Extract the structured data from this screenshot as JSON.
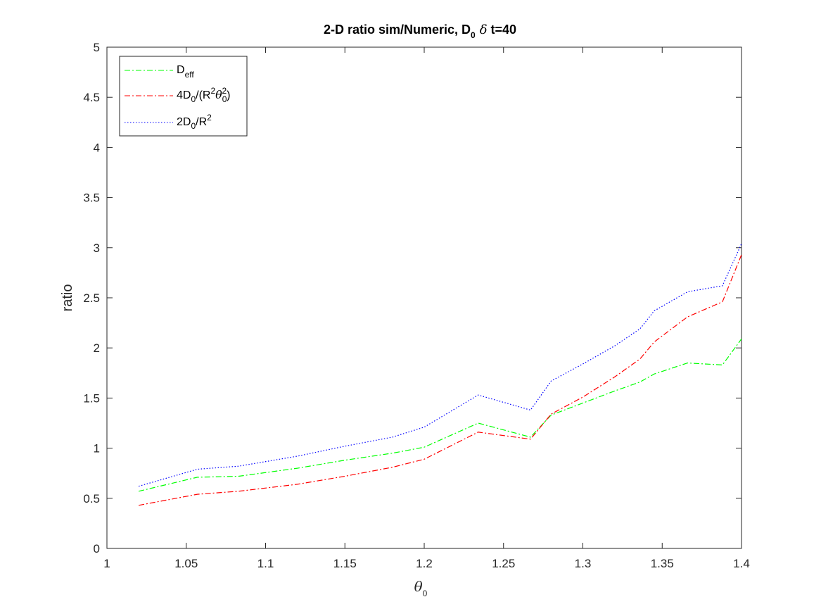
{
  "chart_data": {
    "type": "line",
    "title": {
      "prefix": "2-D ratio sim/Numeric, D",
      "sub": "0",
      "delta": "δ",
      "suffix": " t=40"
    },
    "xlabel": {
      "main": "θ",
      "sub": "0"
    },
    "ylabel": "ratio",
    "xlim": [
      1,
      1.4
    ],
    "ylim": [
      0,
      5
    ],
    "xticks": [
      "1",
      "1.05",
      "1.1",
      "1.15",
      "1.2",
      "1.25",
      "1.3",
      "1.35",
      "1.4"
    ],
    "xtick_values": [
      1,
      1.05,
      1.1,
      1.15,
      1.2,
      1.25,
      1.3,
      1.35,
      1.4
    ],
    "yticks": [
      "0",
      "0.5",
      "1",
      "1.5",
      "2",
      "2.5",
      "3",
      "3.5",
      "4",
      "4.5",
      "5"
    ],
    "ytick_values": [
      0,
      0.5,
      1,
      1.5,
      2,
      2.5,
      3,
      3.5,
      4,
      4.5,
      5
    ],
    "grid": false,
    "legend_position": "top-left",
    "x": [
      1.02,
      1.057,
      1.083,
      1.12,
      1.15,
      1.18,
      1.2,
      1.234,
      1.267,
      1.28,
      1.3,
      1.32,
      1.336,
      1.345,
      1.366,
      1.388,
      1.4
    ],
    "series": [
      {
        "name": "D_eff",
        "legend": {
          "main": "D",
          "sub": "eff"
        },
        "color": "#00ff00",
        "dash": "8,3,2,3",
        "values": [
          0.57,
          0.71,
          0.72,
          0.8,
          0.88,
          0.95,
          1.01,
          1.25,
          1.11,
          1.33,
          1.45,
          1.57,
          1.66,
          1.74,
          1.85,
          1.83,
          2.09
        ]
      },
      {
        "name": "4D_0/(R^2 θ_0^2)",
        "legend": {
          "p1": "4D",
          "s1": "0",
          "p2": "/(R",
          "u1": "2",
          "p3": "θ",
          "s2": "0",
          "u2": "2",
          "p4": ")"
        },
        "color": "#ff0000",
        "dash": "8,3,2,3",
        "values": [
          0.43,
          0.54,
          0.57,
          0.64,
          0.72,
          0.81,
          0.89,
          1.16,
          1.09,
          1.34,
          1.51,
          1.71,
          1.89,
          2.06,
          2.31,
          2.46,
          2.93
        ]
      },
      {
        "name": "2D_0/R^2",
        "legend": {
          "p1": "2D",
          "s1": "0",
          "p2": "/R",
          "u1": "2"
        },
        "color": "#0000ff",
        "dash": "1.5,2.5",
        "values": [
          0.62,
          0.79,
          0.82,
          0.92,
          1.02,
          1.11,
          1.21,
          1.53,
          1.38,
          1.67,
          1.84,
          2.02,
          2.19,
          2.37,
          2.56,
          2.62,
          3.04
        ]
      }
    ]
  }
}
